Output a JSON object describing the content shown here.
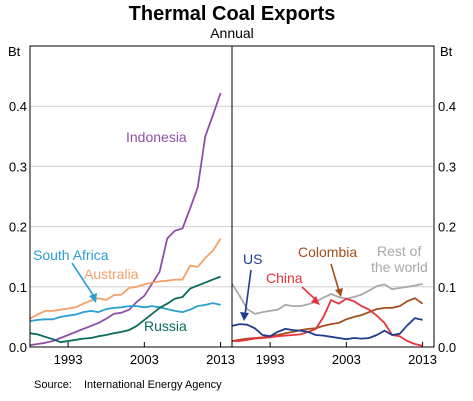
{
  "chart_data": {
    "title": "Thermal Coal Exports",
    "subtitle": "Annual",
    "ylabel_left": "Bt",
    "ylabel_right": "Bt",
    "y_ticks": [
      "0.0",
      "0.1",
      "0.2",
      "0.3",
      "0.4"
    ],
    "source_label": "Source:",
    "source_text": "International Energy Agency",
    "panels": [
      {
        "type": "line",
        "x_ticks": [
          "1993",
          "2003",
          "2013"
        ],
        "xlim": [
          1988,
          2014.5
        ],
        "ylim": [
          0,
          0.5
        ],
        "grid": "horizontal",
        "series": [
          {
            "name": "Indonesia",
            "color": "#8e4fa8",
            "x": [
              1988,
              1989,
              1990,
              1991,
              1992,
              1993,
              1994,
              1995,
              1996,
              1997,
              1998,
              1999,
              2000,
              2001,
              2002,
              2003,
              2004,
              2005,
              2006,
              2007,
              2008,
              2009,
              2010,
              2011,
              2012,
              2013
            ],
            "values": [
              0.003,
              0.005,
              0.007,
              0.01,
              0.015,
              0.02,
              0.025,
              0.03,
              0.035,
              0.04,
              0.047,
              0.055,
              0.057,
              0.062,
              0.075,
              0.085,
              0.105,
              0.125,
              0.18,
              0.193,
              0.197,
              0.23,
              0.265,
              0.35,
              0.385,
              0.422
            ]
          },
          {
            "name": "Australia",
            "color": "#f4a06a",
            "x": [
              1988,
              1989,
              1990,
              1991,
              1992,
              1993,
              1994,
              1995,
              1996,
              1997,
              1998,
              1999,
              2000,
              2001,
              2002,
              2003,
              2004,
              2005,
              2006,
              2007,
              2008,
              2009,
              2010,
              2011,
              2012,
              2013
            ],
            "values": [
              0.047,
              0.054,
              0.06,
              0.06,
              0.062,
              0.064,
              0.066,
              0.072,
              0.077,
              0.081,
              0.078,
              0.086,
              0.087,
              0.098,
              0.1,
              0.104,
              0.107,
              0.109,
              0.11,
              0.112,
              0.112,
              0.135,
              0.133,
              0.148,
              0.16,
              0.18
            ]
          },
          {
            "name": "South Africa",
            "color": "#2a9fd0",
            "x": [
              1988,
              1989,
              1990,
              1991,
              1992,
              1993,
              1994,
              1995,
              1996,
              1997,
              1998,
              1999,
              2000,
              2001,
              2002,
              2003,
              2004,
              2005,
              2006,
              2007,
              2008,
              2009,
              2010,
              2011,
              2012,
              2013
            ],
            "values": [
              0.043,
              0.045,
              0.046,
              0.046,
              0.05,
              0.052,
              0.054,
              0.058,
              0.06,
              0.058,
              0.063,
              0.065,
              0.066,
              0.068,
              0.068,
              0.066,
              0.068,
              0.066,
              0.063,
              0.06,
              0.058,
              0.062,
              0.068,
              0.07,
              0.073,
              0.07
            ]
          },
          {
            "name": "Russia",
            "color": "#0b6b5b",
            "x": [
              1988,
              1989,
              1990,
              1991,
              1992,
              1993,
              1994,
              1995,
              1996,
              1997,
              1998,
              1999,
              2000,
              2001,
              2002,
              2003,
              2004,
              2005,
              2006,
              2007,
              2008,
              2009,
              2010,
              2011,
              2012,
              2013
            ],
            "values": [
              0.023,
              0.021,
              0.017,
              0.013,
              0.008,
              0.01,
              0.012,
              0.014,
              0.015,
              0.018,
              0.02,
              0.023,
              0.025,
              0.028,
              0.035,
              0.045,
              0.055,
              0.065,
              0.072,
              0.08,
              0.083,
              0.097,
              0.102,
              0.107,
              0.112,
              0.117
            ]
          }
        ]
      },
      {
        "type": "line",
        "x_ticks": [
          "1993",
          "2003",
          "2013"
        ],
        "xlim": [
          1988,
          2014.5
        ],
        "ylim": [
          0,
          0.5
        ],
        "grid": "horizontal",
        "series": [
          {
            "name": "Rest of the world",
            "color": "#a9a9a9",
            "x": [
              1988,
              1989,
              1990,
              1991,
              1992,
              1993,
              1994,
              1995,
              1996,
              1997,
              1998,
              1999,
              2000,
              2001,
              2002,
              2003,
              2004,
              2005,
              2006,
              2007,
              2008,
              2009,
              2010,
              2011,
              2012,
              2013
            ],
            "values": [
              0.105,
              0.085,
              0.063,
              0.055,
              0.058,
              0.06,
              0.062,
              0.07,
              0.068,
              0.068,
              0.071,
              0.075,
              0.082,
              0.088,
              0.083,
              0.08,
              0.083,
              0.087,
              0.094,
              0.101,
              0.104,
              0.096,
              0.098,
              0.1,
              0.102,
              0.105
            ]
          },
          {
            "name": "Colombia",
            "color": "#a24e1b",
            "x": [
              1988,
              1989,
              1990,
              1991,
              1992,
              1993,
              1994,
              1995,
              1996,
              1997,
              1998,
              1999,
              2000,
              2001,
              2002,
              2003,
              2004,
              2005,
              2006,
              2007,
              2008,
              2009,
              2010,
              2011,
              2012,
              2013
            ],
            "values": [
              0.01,
              0.012,
              0.014,
              0.015,
              0.016,
              0.018,
              0.02,
              0.023,
              0.025,
              0.028,
              0.03,
              0.031,
              0.035,
              0.038,
              0.04,
              0.046,
              0.05,
              0.053,
              0.058,
              0.063,
              0.065,
              0.065,
              0.068,
              0.076,
              0.081,
              0.072
            ]
          },
          {
            "name": "China",
            "color": "#e8323c",
            "x": [
              1988,
              1989,
              1990,
              1991,
              1992,
              1993,
              1994,
              1995,
              1996,
              1997,
              1998,
              1999,
              2000,
              2001,
              2002,
              2003,
              2004,
              2005,
              2006,
              2007,
              2008,
              2009,
              2010,
              2011,
              2012,
              2013
            ],
            "values": [
              0.01,
              0.01,
              0.012,
              0.014,
              0.015,
              0.016,
              0.018,
              0.019,
              0.02,
              0.021,
              0.025,
              0.03,
              0.05,
              0.078,
              0.072,
              0.08,
              0.076,
              0.068,
              0.062,
              0.052,
              0.04,
              0.02,
              0.018,
              0.01,
              0.005,
              0.002
            ]
          },
          {
            "name": "US",
            "color": "#1f3d8c",
            "x": [
              1988,
              1989,
              1990,
              1991,
              1992,
              1993,
              1994,
              1995,
              1996,
              1997,
              1998,
              1999,
              2000,
              2001,
              2002,
              2003,
              2004,
              2005,
              2006,
              2007,
              2008,
              2009,
              2010,
              2011,
              2012,
              2013
            ],
            "values": [
              0.035,
              0.038,
              0.037,
              0.031,
              0.02,
              0.018,
              0.025,
              0.03,
              0.028,
              0.027,
              0.025,
              0.02,
              0.019,
              0.017,
              0.015,
              0.013,
              0.015,
              0.014,
              0.015,
              0.02,
              0.027,
              0.02,
              0.022,
              0.036,
              0.048,
              0.045
            ]
          }
        ]
      }
    ]
  },
  "annotations": {
    "indonesia": "Indonesia",
    "south_africa": "South Africa",
    "australia": "Australia",
    "russia": "Russia",
    "us": "US",
    "colombia": "Colombia",
    "china": "China",
    "rest_line1": "Rest of",
    "rest_line2": "the world"
  }
}
